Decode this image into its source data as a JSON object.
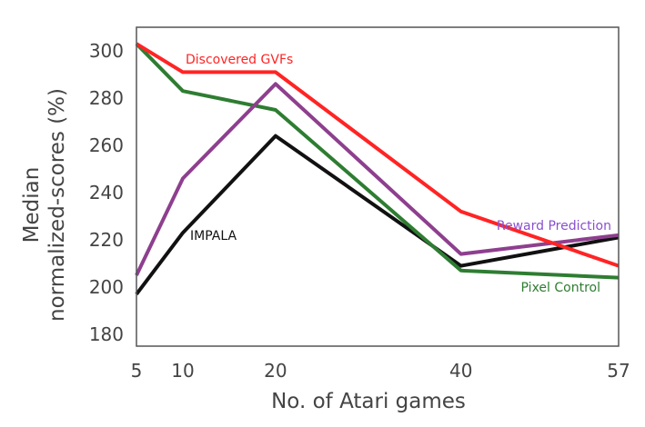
{
  "chart_data": {
    "type": "line",
    "title": "",
    "xlabel": "No. of Atari games",
    "ylabel_lines": [
      "Median",
      "normalized-scores (%)"
    ],
    "x": [
      5,
      10,
      20,
      40,
      57
    ],
    "xticks": [
      "5",
      "10",
      "20",
      "40",
      "57"
    ],
    "yticks": [
      "180",
      "200",
      "220",
      "240",
      "260",
      "280",
      "300"
    ],
    "xlim": [
      5,
      57
    ],
    "ylim": [
      175,
      310
    ],
    "grid": false,
    "series": [
      {
        "name": "IMPALA",
        "color": "#111111",
        "values": [
          197,
          223,
          264,
          209,
          221
        ]
      },
      {
        "name": "Pixel Control",
        "color": "#2e7d32",
        "values": [
          303,
          283,
          275,
          207,
          204
        ]
      },
      {
        "name": "Reward Prediction",
        "color": "#8e3f8e",
        "values": [
          205,
          246,
          286,
          214,
          222
        ]
      },
      {
        "name": "Discovered GVFs",
        "color": "#ff2424",
        "values": [
          303,
          291,
          291,
          232,
          209
        ]
      }
    ],
    "annotations": {
      "Discovered GVFs": {
        "text": "Discovered GVFs",
        "color": "#ff2424"
      },
      "Reward Prediction": {
        "text": "Reward Prediction",
        "color": "#8a4fcf"
      },
      "IMPALA": {
        "text": "IMPALA",
        "color": "#111111"
      },
      "Pixel Control": {
        "text": "Pixel Control",
        "color": "#2e7d32"
      }
    }
  }
}
